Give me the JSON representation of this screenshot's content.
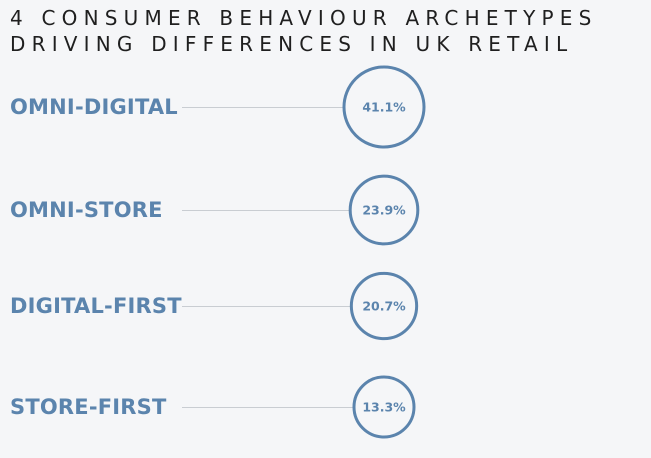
{
  "title_lines": [
    "4 CONSUMER BEHAVIOUR ARCHETYPES",
    "DRIVING DIFFERENCES IN UK RETAIL"
  ],
  "colors": {
    "background": "#f5f6f8",
    "accent": "#5b84ad",
    "title": "#1f1f1f",
    "connector": "#c9cdd2"
  },
  "chart_data": {
    "type": "bubble",
    "title": "4 CONSUMER BEHAVIOUR ARCHETYPES DRIVING DIFFERENCES IN UK RETAIL",
    "categories": [
      "OMNI-DIGITAL",
      "OMNI-STORE",
      "DIGITAL-FIRST",
      "STORE-FIRST"
    ],
    "values": [
      41.1,
      23.9,
      20.7,
      13.3
    ],
    "value_labels": [
      "41.1%",
      "23.9%",
      "20.7%",
      "13.3%"
    ],
    "unit": "%",
    "legend": "none",
    "grid": false
  }
}
